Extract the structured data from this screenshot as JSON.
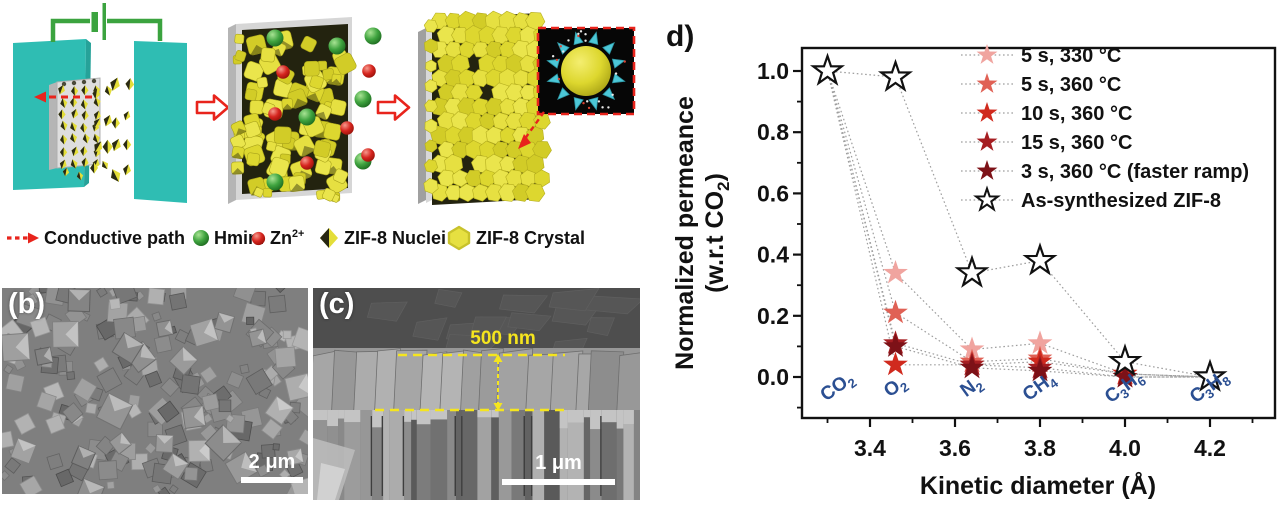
{
  "panels": {
    "schematic": {
      "legend_items": [
        {
          "icon": "conductive-path-arrow-icon",
          "segments": [
            {
              "t": "Conductive path"
            }
          ]
        },
        {
          "icon": "hmim-sphere-icon",
          "segments": [
            {
              "t": "Hmim"
            }
          ]
        },
        {
          "icon": "zn-ion-sphere-icon",
          "segments": [
            {
              "t": "Zn"
            },
            {
              "t": "2+",
              "sup": true
            }
          ]
        },
        {
          "icon": "zif8-nuclei-icon",
          "segments": [
            {
              "t": "ZIF-8 Nuclei"
            }
          ]
        },
        {
          "icon": "zif8-crystal-icon",
          "segments": [
            {
              "t": "ZIF-8 Crystal"
            }
          ]
        }
      ],
      "colors": {
        "electrode": "#2fbdb3",
        "wire": "#3ba33f",
        "substrate": "#d8d8d8",
        "crystal": "#e4de39",
        "crystal_dark": "#a8a21a",
        "hmim_sphere": "#3fa33f",
        "zn_sphere": "#d6251f",
        "arrow_red": "#e8241c",
        "inset_triangle": "#4cc7d7",
        "inset_bg": "#060606"
      }
    },
    "sem_b": {
      "label": "(b)",
      "scale_bar": "2 μm"
    },
    "sem_c": {
      "label": "(c)",
      "scale_bar": "1 μm",
      "thickness_annotation": "500 nm"
    },
    "chart": {
      "label": "d)"
    }
  },
  "chart_data": {
    "type": "scatter",
    "xlabel": "Kinetic diameter (Å)",
    "ylabel_lines": [
      [
        {
          "t": "Normalized permeance"
        }
      ],
      [
        {
          "t": "(w.r.t CO"
        },
        {
          "t": "2",
          "sub": true
        },
        {
          "t": ")"
        }
      ]
    ],
    "xlim": [
      3.24,
      4.35
    ],
    "ylim": [
      -0.13,
      1.08
    ],
    "x_ticks": [
      3.4,
      3.6,
      3.8,
      4.0,
      4.2
    ],
    "x_minor_ticks": [
      3.3,
      3.5,
      3.7,
      3.9,
      4.1,
      4.3
    ],
    "y_ticks": [
      0.0,
      0.2,
      0.4,
      0.6,
      0.8,
      1.0
    ],
    "y_minor_ticks": [
      -0.1,
      0.1,
      0.3,
      0.5,
      0.7,
      0.9
    ],
    "grid": false,
    "legend_position": "top-right-inside",
    "marker": "star",
    "line_style": "dotted",
    "line_color": "#9e9e9e",
    "axis_color": "#111111",
    "gas_label_color": "#2b4f92",
    "categories": [
      {
        "name": "CO2",
        "segments": [
          {
            "t": "CO"
          },
          {
            "t": "2",
            "sub": true
          }
        ],
        "kinetic_diameter": 3.3
      },
      {
        "name": "O2",
        "segments": [
          {
            "t": "O"
          },
          {
            "t": "2",
            "sub": true
          }
        ],
        "kinetic_diameter": 3.46
      },
      {
        "name": "N2",
        "segments": [
          {
            "t": "N"
          },
          {
            "t": "2",
            "sub": true
          }
        ],
        "kinetic_diameter": 3.64
      },
      {
        "name": "CH4",
        "segments": [
          {
            "t": "CH"
          },
          {
            "t": "4",
            "sub": true
          }
        ],
        "kinetic_diameter": 3.8
      },
      {
        "name": "C3H6",
        "segments": [
          {
            "t": "C"
          },
          {
            "t": "3",
            "sub": true
          },
          {
            "t": "H"
          },
          {
            "t": "6",
            "sub": true
          }
        ],
        "kinetic_diameter": 4.0
      },
      {
        "name": "C3H8",
        "segments": [
          {
            "t": "C"
          },
          {
            "t": "3",
            "sub": true
          },
          {
            "t": "H"
          },
          {
            "t": "8",
            "sub": true
          }
        ],
        "kinetic_diameter": 4.2
      }
    ],
    "series": [
      {
        "name": "5 s, 330 °C",
        "color": "#f0a49f",
        "marker_filled": true,
        "values": [
          1.0,
          0.34,
          0.09,
          0.11,
          0.01,
          0.0
        ]
      },
      {
        "name": "5 s, 360 °C",
        "color": "#e06155",
        "marker_filled": true,
        "values": [
          1.0,
          0.21,
          0.05,
          0.06,
          0.01,
          0.0
        ]
      },
      {
        "name": "10 s, 360 °C",
        "color": "#d02a1e",
        "marker_filled": true,
        "values": [
          1.0,
          0.04,
          0.04,
          0.05,
          0.01,
          0.0
        ]
      },
      {
        "name": "15 s, 360 °C",
        "color": "#a61e22",
        "marker_filled": true,
        "values": [
          1.0,
          0.11,
          0.04,
          0.03,
          0.0,
          0.0
        ]
      },
      {
        "name": "3 s, 360 °C (faster ramp)",
        "color": "#7d1117",
        "marker_filled": true,
        "values": [
          1.0,
          0.1,
          0.03,
          0.02,
          0.0,
          0.0
        ]
      },
      {
        "name": "As-synthesized ZIF-8",
        "color": "#111111",
        "marker_fill": "#ffffff",
        "marker_filled": false,
        "values": [
          1.0,
          0.98,
          0.34,
          0.38,
          0.05,
          0.0
        ]
      }
    ]
  }
}
